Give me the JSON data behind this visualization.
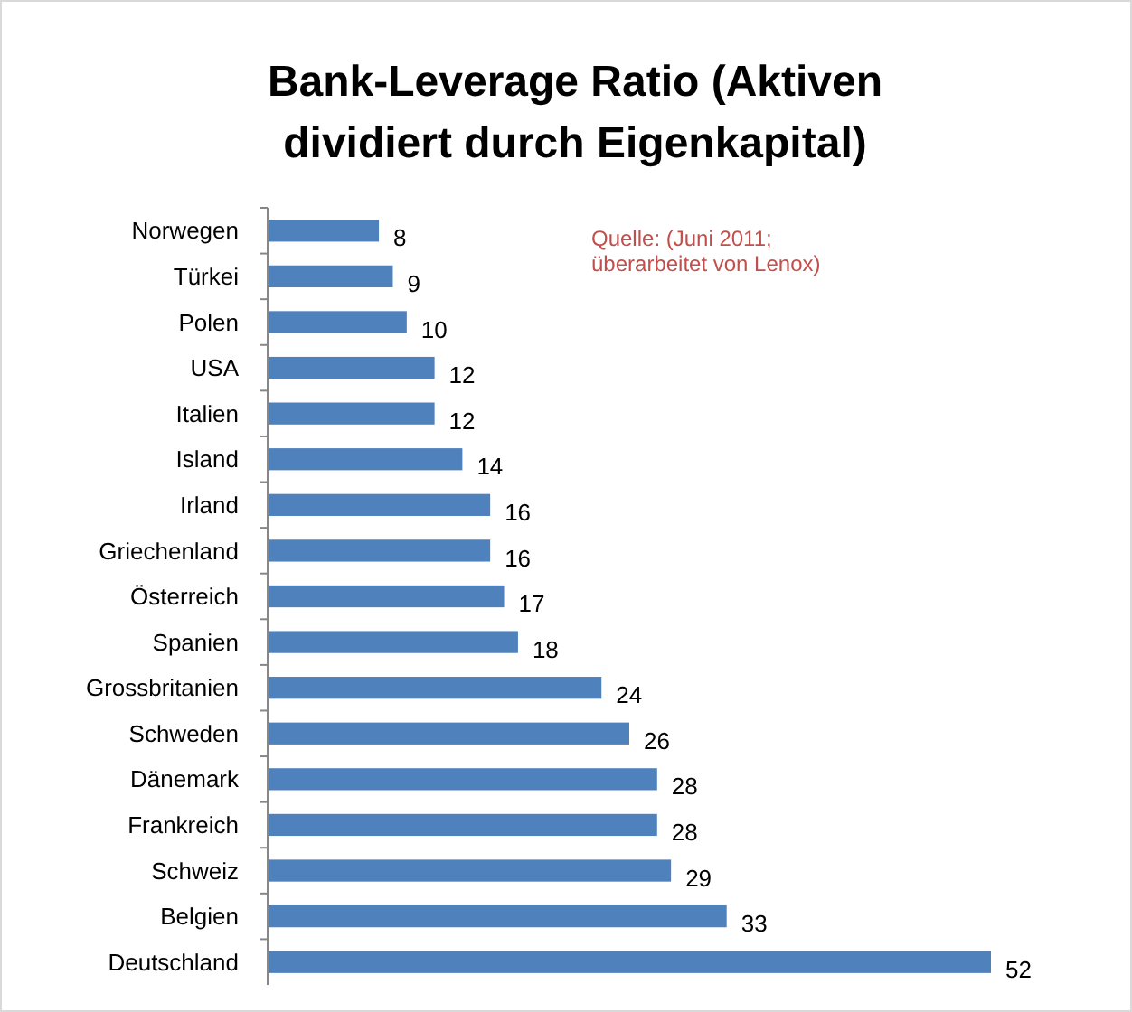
{
  "chart_data": {
    "type": "bar",
    "orientation": "horizontal",
    "title": "Bank-Leverage Ratio (Aktiven dividiert durch Eigenkapital)",
    "categories": [
      "Norwegen",
      "Türkei",
      "Polen",
      "USA",
      "Italien",
      "Island",
      "Irland",
      "Griechenland",
      "Österreich",
      "Spanien",
      "Grossbritanien",
      "Schweden",
      "Dänemark",
      "Frankreich",
      "Schweiz",
      "Belgien",
      "Deutschland"
    ],
    "values": [
      8,
      9,
      10,
      12,
      12,
      14,
      16,
      16,
      17,
      18,
      24,
      26,
      28,
      28,
      29,
      33,
      52
    ],
    "color": "#4f81bd",
    "data_labels": true,
    "annotations": [
      "Quelle: (Juni 2011; überarbeitet von Lenox)"
    ]
  }
}
